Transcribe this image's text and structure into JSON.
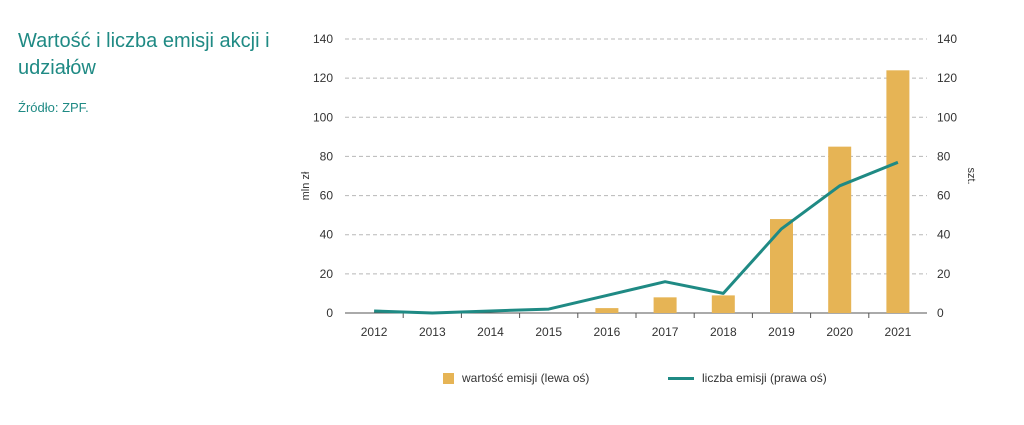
{
  "title": "Wartość i liczba emisji akcji i udziałów",
  "source": "Źródło: ZPF.",
  "chart_data": {
    "type": "bar",
    "categories": [
      "2012",
      "2013",
      "2014",
      "2015",
      "2016",
      "2017",
      "2018",
      "2019",
      "2020",
      "2021"
    ],
    "series": [
      {
        "name": "wartość emisji (lewa oś)",
        "type": "bar",
        "axis": "left",
        "values": [
          0,
          0,
          0,
          0,
          2.5,
          8,
          9,
          48,
          85,
          124
        ],
        "color": "#e6b455"
      },
      {
        "name": "liczba emisji (prawa oś)",
        "type": "line",
        "axis": "right",
        "values": [
          1,
          0,
          1,
          2,
          9,
          16,
          10,
          43,
          65,
          77
        ],
        "color": "#1f8a84"
      }
    ],
    "ylabel_left": "mln zł",
    "ylabel_right": "szt.",
    "ylim_left": [
      0,
      140
    ],
    "ylim_right": [
      0,
      140
    ],
    "yticks": [
      0,
      20,
      40,
      60,
      80,
      100,
      120,
      140
    ],
    "grid": true,
    "legend_position": "bottom"
  }
}
